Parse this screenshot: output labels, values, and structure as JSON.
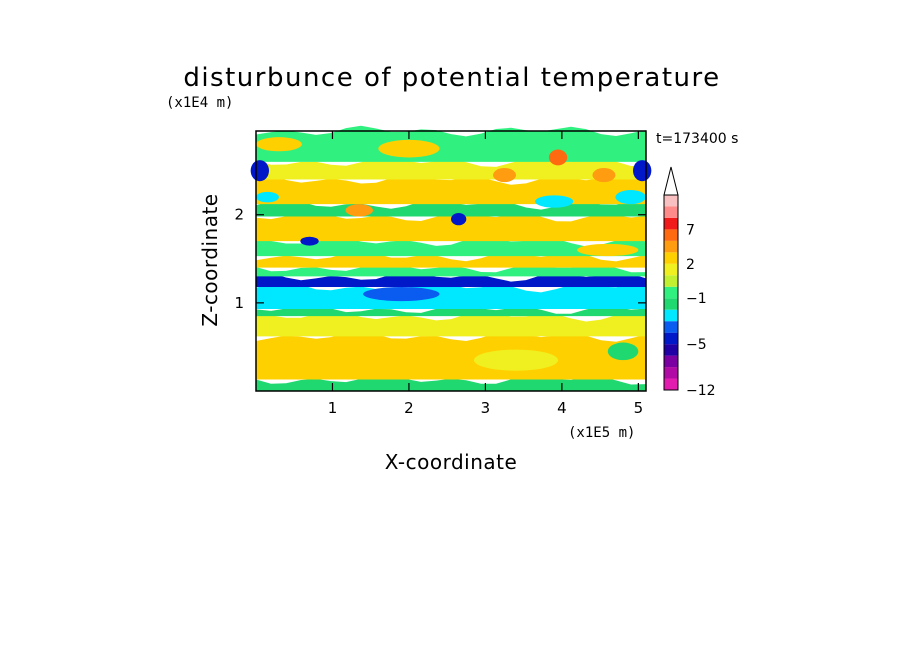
{
  "chart_data": {
    "type": "heatmap",
    "title": "disturbunce of potential temperature",
    "xlabel": "X-coordinate",
    "ylabel": "Z-coordinate",
    "x_unit": "(x1E5 m)",
    "y_unit": "(x1E4 m)",
    "time_label": "t=173400 s",
    "xlim": [
      0,
      5.1
    ],
    "ylim": [
      0,
      2.95
    ],
    "x_ticks": [
      "1",
      "2",
      "3",
      "4",
      "5"
    ],
    "y_ticks": [
      "1",
      "2"
    ],
    "colorbar": {
      "labels": [
        "7",
        "2",
        "−1",
        "−5",
        "−12"
      ],
      "levels": [
        "-12",
        "-10",
        "-8",
        "-6",
        "-5",
        "-4",
        "-3",
        "-2",
        "-1",
        "0",
        "1",
        "2",
        "3",
        "5",
        "7",
        "9",
        "11"
      ],
      "colors": [
        "#e21cae",
        "#b00ca5",
        "#7a00a2",
        "#2000a5",
        "#0018c8",
        "#0a5cf0",
        "#00e8ff",
        "#20d870",
        "#30f080",
        "#c0f030",
        "#f0f020",
        "#ffd000",
        "#ff9c10",
        "#ff6a10",
        "#f01a1a",
        "#ff8a8a",
        "#f8c0c0"
      ],
      "extend": "max"
    },
    "bands": [
      {
        "z0": 0.0,
        "z1": 0.13,
        "color": "#20d870"
      },
      {
        "z0": 0.13,
        "z1": 0.62,
        "color": "#ffd000"
      },
      {
        "z0": 0.62,
        "z1": 0.85,
        "color": "#f0f020"
      },
      {
        "z0": 0.85,
        "z1": 0.93,
        "color": "#20d870"
      },
      {
        "z0": 0.93,
        "z1": 1.18,
        "color": "#00e8ff"
      },
      {
        "z0": 1.18,
        "z1": 1.3,
        "color": "#0018c8"
      },
      {
        "z0": 1.3,
        "z1": 1.4,
        "color": "#30f080"
      },
      {
        "z0": 1.4,
        "z1": 1.53,
        "color": "#ffd000"
      },
      {
        "z0": 1.53,
        "z1": 1.7,
        "color": "#30f080"
      },
      {
        "z0": 1.7,
        "z1": 1.98,
        "color": "#ffd000"
      },
      {
        "z0": 1.98,
        "z1": 2.12,
        "color": "#20d870"
      },
      {
        "z0": 2.12,
        "z1": 2.4,
        "color": "#ffd000"
      },
      {
        "z0": 2.4,
        "z1": 2.6,
        "color": "#f0f020"
      },
      {
        "z0": 2.6,
        "z1": 2.95,
        "color": "#30f080"
      }
    ],
    "blobs": [
      {
        "x": 0.05,
        "z": 2.5,
        "rx": 0.12,
        "rz": 0.12,
        "color": "#0018c8"
      },
      {
        "x": 5.05,
        "z": 2.5,
        "rx": 0.12,
        "rz": 0.12,
        "color": "#0018c8"
      },
      {
        "x": 2.65,
        "z": 1.95,
        "rx": 0.1,
        "rz": 0.07,
        "color": "#0018c8"
      },
      {
        "x": 0.7,
        "z": 1.7,
        "rx": 0.12,
        "rz": 0.05,
        "color": "#0018c8"
      },
      {
        "x": 3.95,
        "z": 2.65,
        "rx": 0.12,
        "rz": 0.09,
        "color": "#ff6a10"
      },
      {
        "x": 3.25,
        "z": 2.45,
        "rx": 0.15,
        "rz": 0.08,
        "color": "#ff9c10"
      },
      {
        "x": 4.55,
        "z": 2.45,
        "rx": 0.15,
        "rz": 0.08,
        "color": "#ff9c10"
      },
      {
        "x": 1.35,
        "z": 2.05,
        "rx": 0.18,
        "rz": 0.07,
        "color": "#ff9c10"
      },
      {
        "x": 3.9,
        "z": 2.15,
        "rx": 0.25,
        "rz": 0.07,
        "color": "#00e8ff"
      },
      {
        "x": 4.9,
        "z": 2.2,
        "rx": 0.2,
        "rz": 0.08,
        "color": "#00e8ff"
      },
      {
        "x": 0.15,
        "z": 2.2,
        "rx": 0.15,
        "rz": 0.06,
        "color": "#00e8ff"
      },
      {
        "x": 1.9,
        "z": 1.1,
        "rx": 0.5,
        "rz": 0.08,
        "color": "#0a5cf0"
      },
      {
        "x": 1.2,
        "z": 0.42,
        "rx": 0.6,
        "rz": 0.08,
        "color": "#ffd000"
      },
      {
        "x": 3.4,
        "z": 0.35,
        "rx": 0.55,
        "rz": 0.12,
        "color": "#f0f020"
      },
      {
        "x": 4.8,
        "z": 0.45,
        "rx": 0.2,
        "rz": 0.1,
        "color": "#20d870"
      },
      {
        "x": 2.0,
        "z": 2.75,
        "rx": 0.4,
        "rz": 0.1,
        "color": "#ffd000"
      },
      {
        "x": 0.3,
        "z": 2.8,
        "rx": 0.3,
        "rz": 0.08,
        "color": "#ffd000"
      },
      {
        "x": 4.6,
        "z": 1.6,
        "rx": 0.4,
        "rz": 0.07,
        "color": "#ffd000"
      }
    ]
  }
}
